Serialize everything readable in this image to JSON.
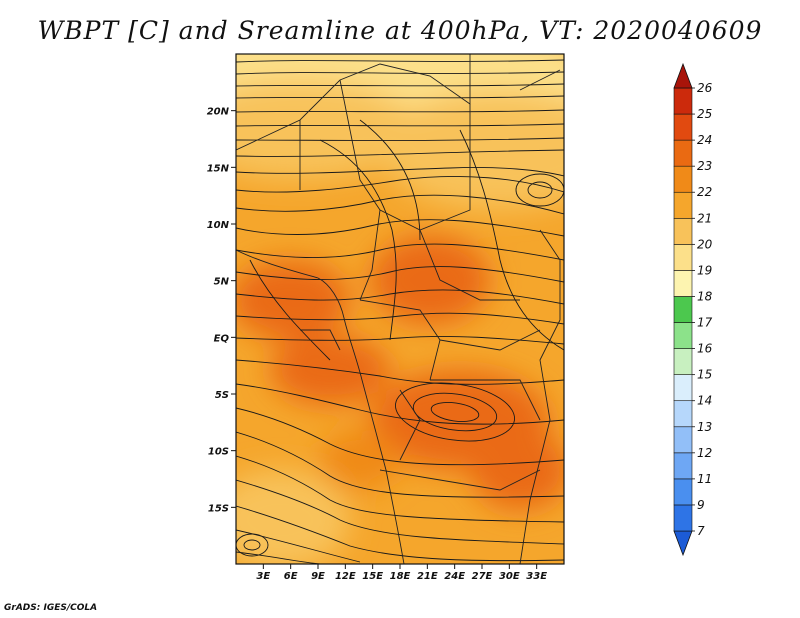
{
  "title": "WBPT [C] and Sreamline at 400hPa, VT: 2020040609",
  "credit": "GrADS: IGES/COLA",
  "map": {
    "lon_range": [
      0,
      36
    ],
    "lat_range": [
      -20,
      25
    ],
    "lat_labels": [
      {
        "lat": 20,
        "label": "20N"
      },
      {
        "lat": 15,
        "label": "15N"
      },
      {
        "lat": 10,
        "label": "10N"
      },
      {
        "lat": 5,
        "label": "5N"
      },
      {
        "lat": 0,
        "label": "EQ"
      },
      {
        "lat": -5,
        "label": "5S"
      },
      {
        "lat": -10,
        "label": "10S"
      },
      {
        "lat": -15,
        "label": "15S"
      }
    ],
    "lon_labels": [
      {
        "lon": 3,
        "label": "3E"
      },
      {
        "lon": 6,
        "label": "6E"
      },
      {
        "lon": 9,
        "label": "9E"
      },
      {
        "lon": 12,
        "label": "12E"
      },
      {
        "lon": 15,
        "label": "15E"
      },
      {
        "lon": 18,
        "label": "18E"
      },
      {
        "lon": 21,
        "label": "21E"
      },
      {
        "lon": 24,
        "label": "24E"
      },
      {
        "lon": 27,
        "label": "27E"
      },
      {
        "lon": 30,
        "label": "30E"
      },
      {
        "lon": 33,
        "label": "33E"
      }
    ]
  },
  "colorbar": {
    "labels": [
      "7",
      "9",
      "11",
      "12",
      "13",
      "14",
      "15",
      "16",
      "17",
      "18",
      "19",
      "20",
      "21",
      "22",
      "23",
      "24",
      "25",
      "26"
    ],
    "colors": [
      "#1c5bd6",
      "#2e74e6",
      "#4a8fef",
      "#6ea7f4",
      "#92bff8",
      "#b6d7fb",
      "#daeefc",
      "#c8f0c0",
      "#8ce28a",
      "#4cc84e",
      "#fdf4b0",
      "#fce08a",
      "#f8c25a",
      "#f5a62c",
      "#f08a18",
      "#ea6a12",
      "#e14a10",
      "#cc2a0c",
      "#a8140a"
    ]
  }
}
